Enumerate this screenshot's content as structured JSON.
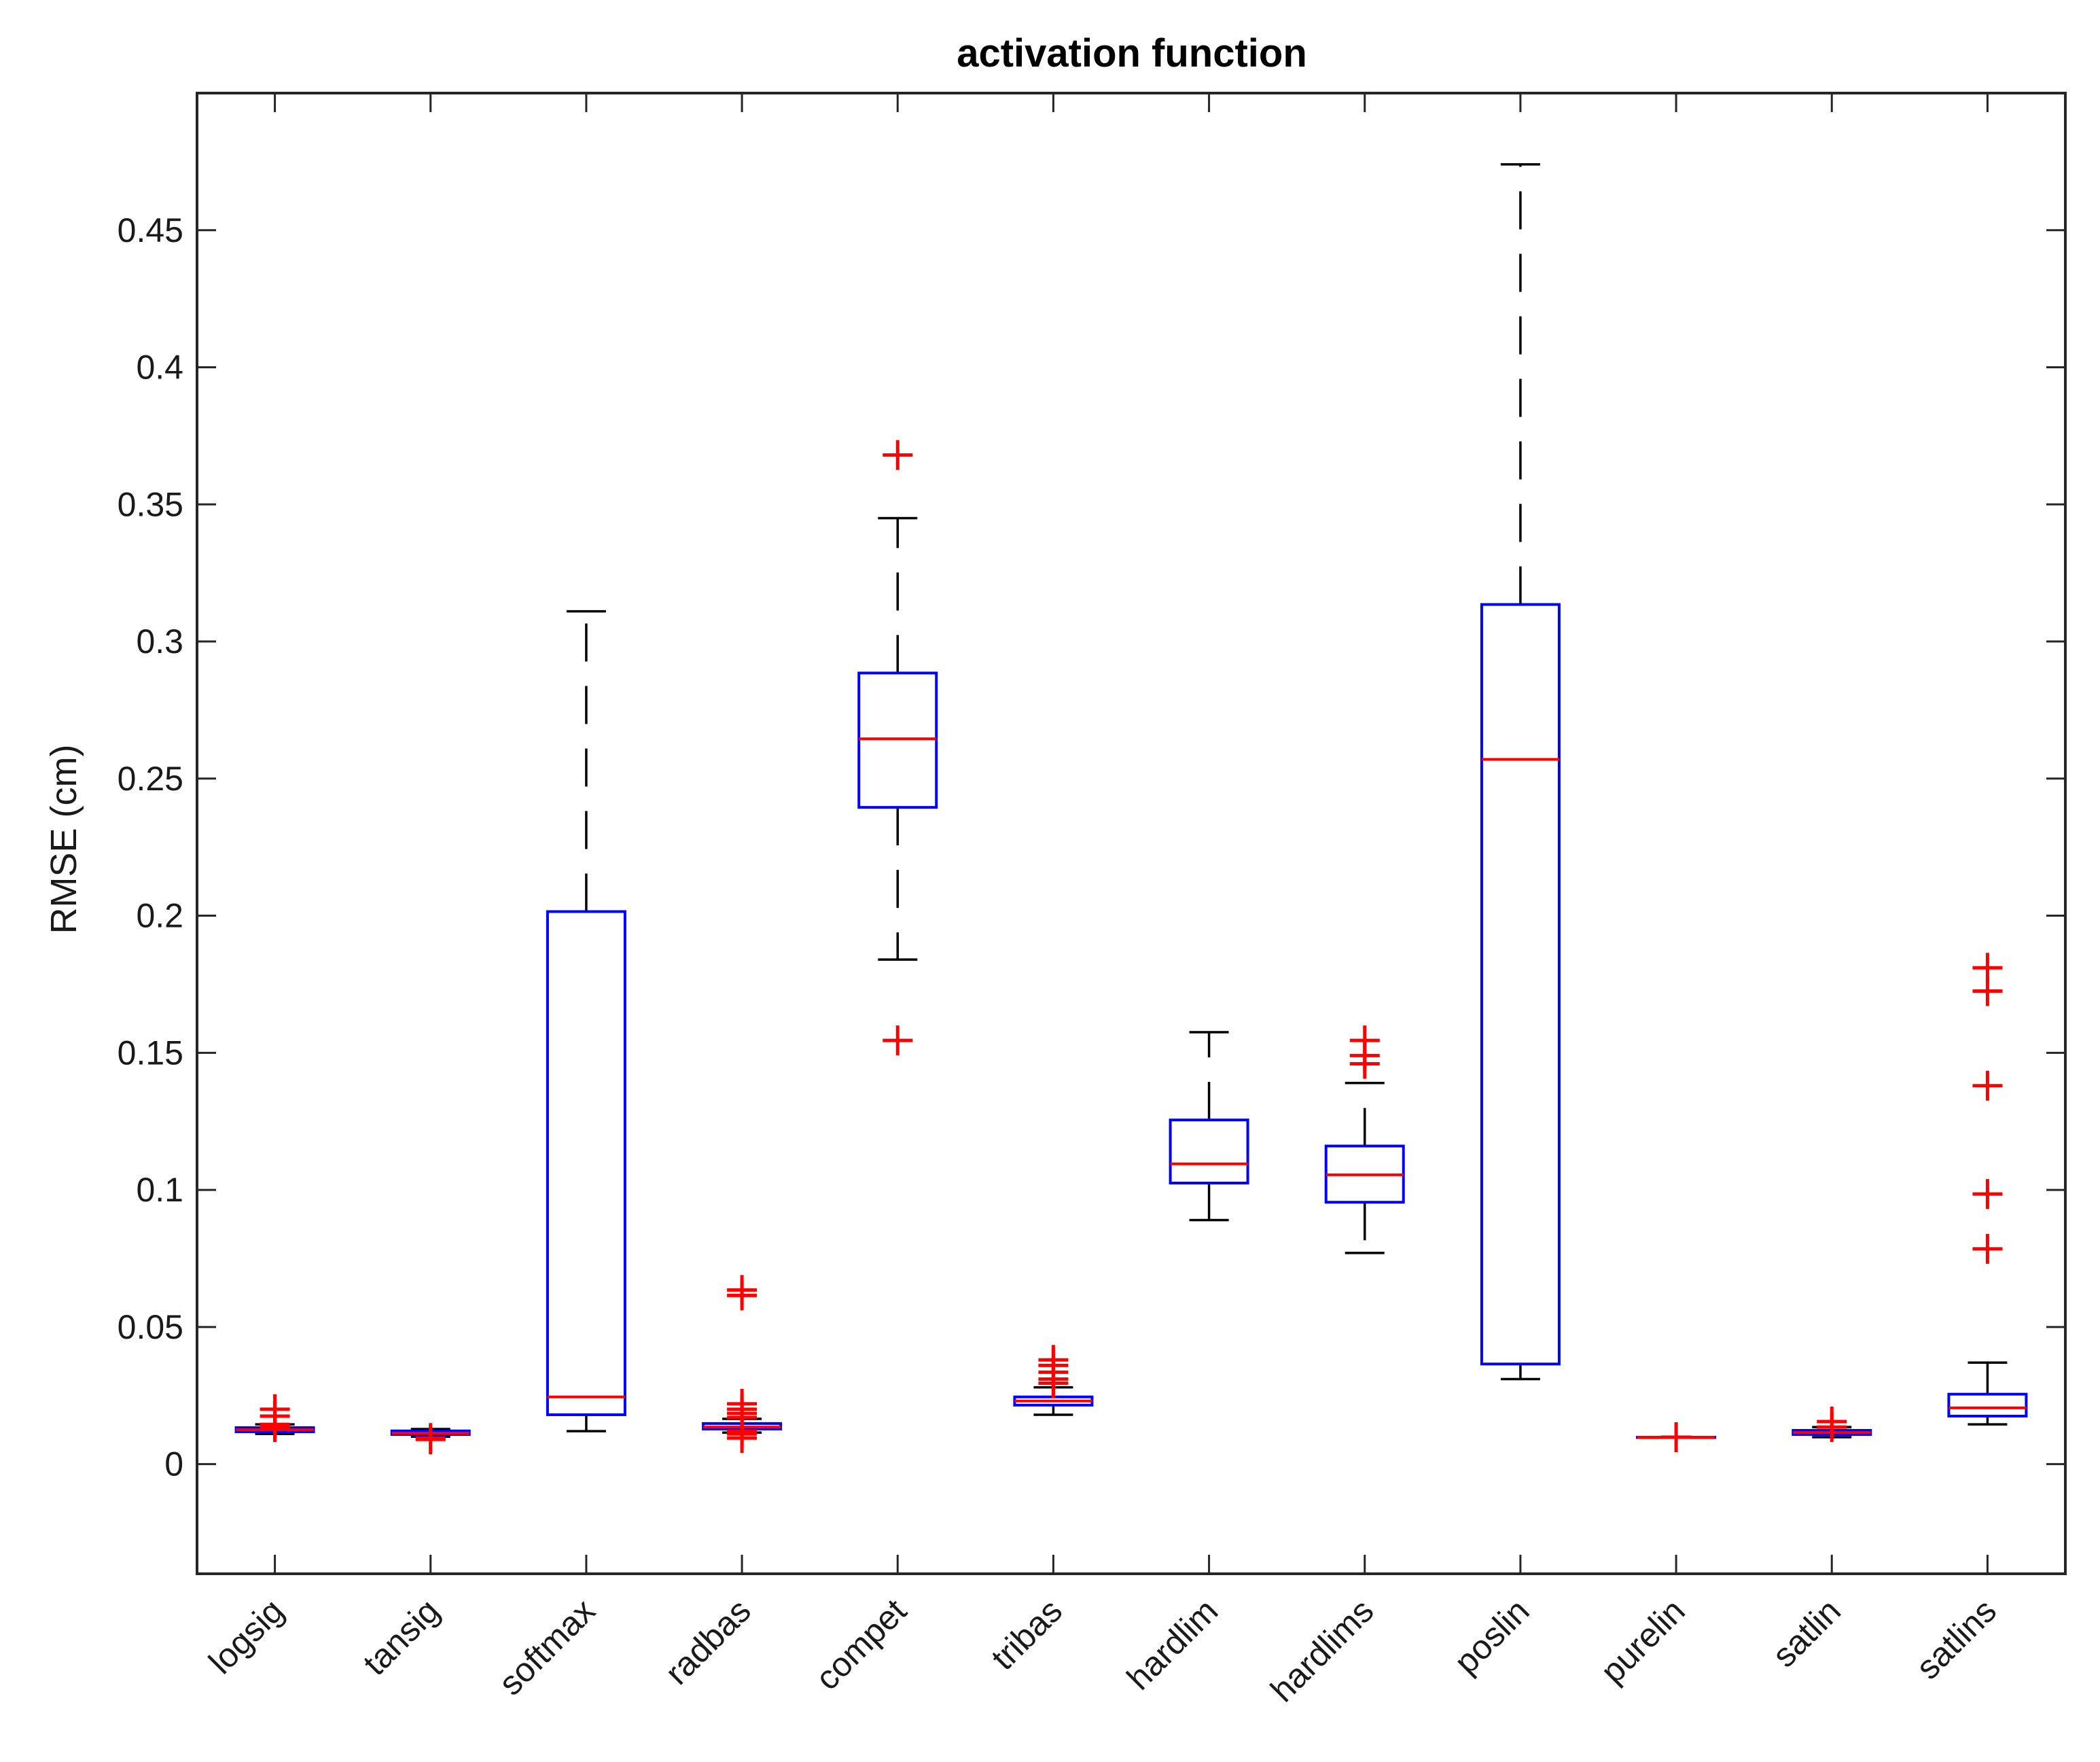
{
  "chart_data": {
    "type": "boxplot",
    "title": "activation function",
    "xlabel": "",
    "ylabel": "RMSE (cm)",
    "ylim": [
      -0.04,
      0.5
    ],
    "yticks": [
      0,
      0.05,
      0.1,
      0.15,
      0.2,
      0.25,
      0.3,
      0.35,
      0.4,
      0.45
    ],
    "ytick_labels": [
      "0",
      "0.05",
      "0.1",
      "0.15",
      "0.2",
      "0.25",
      "0.3",
      "0.35",
      "0.4",
      "0.45"
    ],
    "categories": [
      "logsig",
      "tansig",
      "softmax",
      "radbas",
      "compet",
      "tribas",
      "hardlim",
      "hardlims",
      "poslin",
      "purelin",
      "satlin",
      "satlins"
    ],
    "boxes": [
      {
        "name": "logsig",
        "whisker_low": 0.011,
        "q1": 0.0118,
        "median": 0.0125,
        "q3": 0.0133,
        "whisker_high": 0.0145,
        "outliers": [
          0.0135,
          0.0145,
          0.0175,
          0.02
        ]
      },
      {
        "name": "tansig",
        "whisker_low": 0.01,
        "q1": 0.0108,
        "median": 0.0113,
        "q3": 0.0121,
        "whisker_high": 0.0128,
        "outliers": [
          0.009,
          0.0095
        ]
      },
      {
        "name": "softmax",
        "whisker_low": 0.012,
        "q1": 0.018,
        "median": 0.0245,
        "q3": 0.2015,
        "whisker_high": 0.311,
        "outliers": []
      },
      {
        "name": "radbas",
        "whisker_low": 0.0115,
        "q1": 0.0128,
        "median": 0.0135,
        "q3": 0.0148,
        "whisker_high": 0.0165,
        "outliers": [
          0.0095,
          0.011,
          0.012,
          0.017,
          0.0185,
          0.02,
          0.022,
          0.0615,
          0.0635
        ]
      },
      {
        "name": "compet",
        "whisker_low": 0.184,
        "q1": 0.2395,
        "median": 0.2645,
        "q3": 0.2885,
        "whisker_high": 0.345,
        "outliers": [
          0.1545,
          0.368
        ]
      },
      {
        "name": "tribas",
        "whisker_low": 0.018,
        "q1": 0.0215,
        "median": 0.023,
        "q3": 0.0245,
        "whisker_high": 0.028,
        "outliers": [
          0.0295,
          0.031,
          0.0335,
          0.036,
          0.038
        ]
      },
      {
        "name": "hardlim",
        "whisker_low": 0.089,
        "q1": 0.1025,
        "median": 0.1095,
        "q3": 0.1255,
        "whisker_high": 0.1575,
        "outliers": []
      },
      {
        "name": "hardlims",
        "whisker_low": 0.077,
        "q1": 0.0955,
        "median": 0.1055,
        "q3": 0.116,
        "whisker_high": 0.139,
        "outliers": [
          0.146,
          0.149,
          0.1545
        ]
      },
      {
        "name": "poslin",
        "whisker_low": 0.031,
        "q1": 0.0365,
        "median": 0.257,
        "q3": 0.3135,
        "whisker_high": 0.474,
        "outliers": []
      },
      {
        "name": "purelin",
        "whisker_low": 0.0098,
        "q1": 0.0098,
        "median": 0.0098,
        "q3": 0.0098,
        "whisker_high": 0.0098,
        "outliers": [
          0.0098
        ]
      },
      {
        "name": "satlin",
        "whisker_low": 0.0098,
        "q1": 0.0108,
        "median": 0.0115,
        "q3": 0.0123,
        "whisker_high": 0.0135,
        "outliers": [
          0.0135,
          0.0155
        ]
      },
      {
        "name": "satlins",
        "whisker_low": 0.0145,
        "q1": 0.0175,
        "median": 0.0205,
        "q3": 0.0255,
        "whisker_high": 0.037,
        "outliers": [
          0.0785,
          0.0985,
          0.138,
          0.1725,
          0.181
        ]
      }
    ],
    "grid": false,
    "legend": "none",
    "colors": {
      "box": "#0000ff",
      "median": "#ff0000",
      "whisker": "#000000",
      "outlier": "#ff0000",
      "axis": "#262626"
    }
  }
}
